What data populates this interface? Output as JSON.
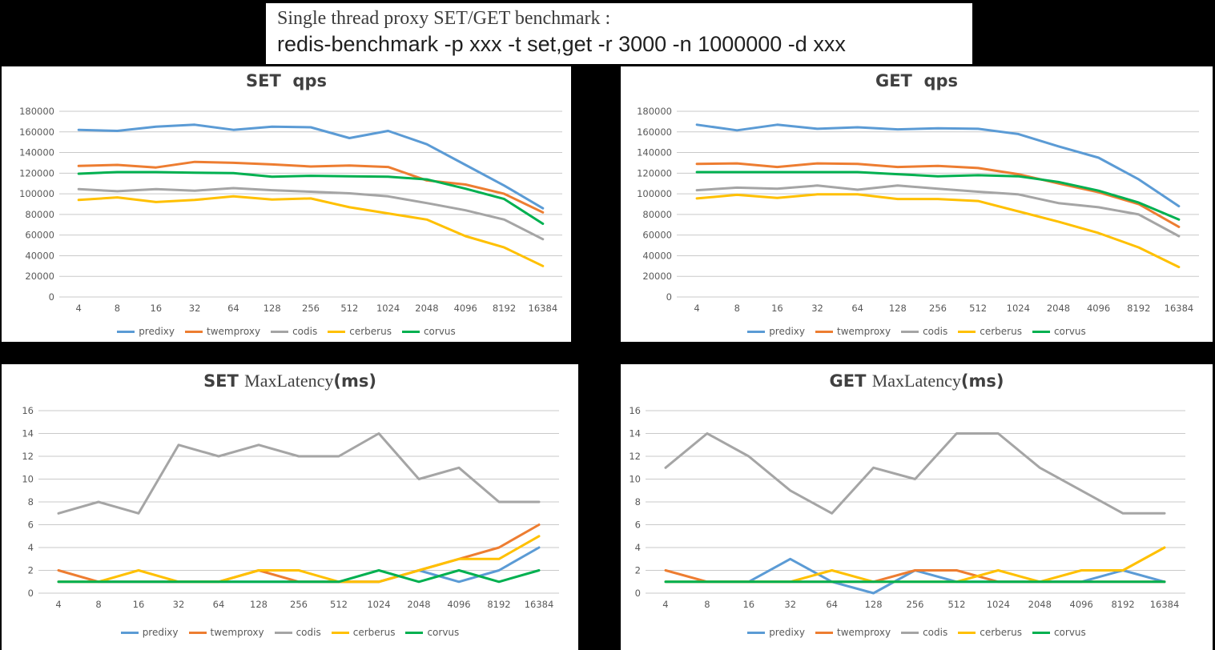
{
  "page": {
    "background": "#000000",
    "header": {
      "line1": "Single thread proxy SET/GET benchmark :",
      "line2": "redis-benchmark -p xxx -t set,get -r 3000 -n 1000000 -d xxx"
    }
  },
  "colors": {
    "predixy": "#5B9BD5",
    "twemproxy": "#ED7D31",
    "codis": "#A5A5A5",
    "cerberus": "#FFC000",
    "corvus": "#00B050",
    "grid": "#C9C9C9",
    "axis_text": "#595959",
    "title_text": "#404040",
    "panel_bg": "#FFFFFF"
  },
  "legend": [
    "predixy",
    "twemproxy",
    "codis",
    "cerberus",
    "corvus"
  ],
  "chart_data": [
    {
      "id": "set-qps",
      "type": "line",
      "title": "SET  qps",
      "title_segments": [
        {
          "text": "SET  qps",
          "font": "bold-sans"
        }
      ],
      "categories": [
        "4",
        "8",
        "16",
        "32",
        "64",
        "128",
        "256",
        "512",
        "1024",
        "2048",
        "4096",
        "8192",
        "16384"
      ],
      "xlabel": "",
      "ylabel": "",
      "ylim": [
        0,
        180000
      ],
      "ytick_step": 20000,
      "grid": true,
      "legend_position": "bottom",
      "series": [
        {
          "name": "predixy",
          "values": [
            162000,
            161000,
            165000,
            167000,
            162000,
            165000,
            164500,
            154000,
            161000,
            148000,
            128000,
            108000,
            86000
          ]
        },
        {
          "name": "twemproxy",
          "values": [
            127000,
            128000,
            125500,
            131000,
            130000,
            128500,
            126500,
            127500,
            126000,
            113000,
            109000,
            100000,
            82000
          ]
        },
        {
          "name": "codis",
          "values": [
            104500,
            102500,
            104500,
            103000,
            105500,
            103500,
            102000,
            100500,
            97500,
            91000,
            84000,
            75000,
            56000
          ]
        },
        {
          "name": "cerberus",
          "values": [
            94000,
            96500,
            92000,
            94000,
            97500,
            94500,
            95500,
            87000,
            81000,
            75000,
            59000,
            48000,
            30000
          ]
        },
        {
          "name": "corvus",
          "values": [
            119500,
            121000,
            121000,
            120500,
            120000,
            116500,
            117500,
            117000,
            116500,
            114000,
            105000,
            95000,
            71000
          ]
        }
      ]
    },
    {
      "id": "get-qps",
      "type": "line",
      "title": "GET  qps",
      "title_segments": [
        {
          "text": "GET  qps",
          "font": "bold-sans"
        }
      ],
      "categories": [
        "4",
        "8",
        "16",
        "32",
        "64",
        "128",
        "256",
        "512",
        "1024",
        "2048",
        "4096",
        "8192",
        "16384"
      ],
      "xlabel": "",
      "ylabel": "",
      "ylim": [
        0,
        180000
      ],
      "ytick_step": 20000,
      "grid": true,
      "legend_position": "bottom",
      "series": [
        {
          "name": "predixy",
          "values": [
            167000,
            161500,
            167000,
            163000,
            164500,
            162500,
            163500,
            163000,
            158000,
            146000,
            135000,
            114000,
            88000
          ]
        },
        {
          "name": "twemproxy",
          "values": [
            129000,
            129500,
            126000,
            129500,
            129000,
            126000,
            127000,
            125000,
            119000,
            110000,
            101500,
            90000,
            68000
          ]
        },
        {
          "name": "codis",
          "values": [
            103500,
            106000,
            105000,
            108000,
            104000,
            108000,
            105000,
            102000,
            99500,
            91000,
            87000,
            80000,
            59000
          ]
        },
        {
          "name": "cerberus",
          "values": [
            95500,
            99000,
            96000,
            99500,
            99500,
            95000,
            95000,
            93000,
            83000,
            73000,
            62000,
            48000,
            29000
          ]
        },
        {
          "name": "corvus",
          "values": [
            121000,
            121000,
            121000,
            121000,
            121000,
            119000,
            117000,
            118000,
            117000,
            111500,
            103000,
            91500,
            75000
          ]
        }
      ]
    },
    {
      "id": "set-latency",
      "type": "line",
      "title": "SET MaxLatency(ms)",
      "title_segments": [
        {
          "text": "SET ",
          "font": "bold-sans"
        },
        {
          "text": "MaxLatency",
          "font": "serif"
        },
        {
          "text": "(ms)",
          "font": "bold-sans"
        }
      ],
      "categories": [
        "4",
        "8",
        "16",
        "32",
        "64",
        "128",
        "256",
        "512",
        "1024",
        "2048",
        "4096",
        "8192",
        "16384"
      ],
      "xlabel": "",
      "ylabel": "",
      "ylim": [
        0,
        16
      ],
      "ytick_step": 2,
      "grid": true,
      "legend_position": "bottom",
      "series": [
        {
          "name": "predixy",
          "values": [
            1,
            1,
            1,
            1,
            1,
            1,
            1,
            1,
            1,
            2,
            1,
            2,
            4
          ]
        },
        {
          "name": "twemproxy",
          "values": [
            2,
            1,
            1,
            1,
            1,
            2,
            1,
            1,
            1,
            2,
            3,
            4,
            6
          ]
        },
        {
          "name": "codis",
          "values": [
            7,
            8,
            7,
            13,
            12,
            13,
            12,
            12,
            14,
            10,
            11,
            8,
            8
          ]
        },
        {
          "name": "cerberus",
          "values": [
            1,
            1,
            2,
            1,
            1,
            2,
            2,
            1,
            1,
            2,
            3,
            3,
            5
          ]
        },
        {
          "name": "corvus",
          "values": [
            1,
            1,
            1,
            1,
            1,
            1,
            1,
            1,
            2,
            1,
            2,
            1,
            2
          ]
        }
      ]
    },
    {
      "id": "get-latency",
      "type": "line",
      "title": "GET MaxLatency(ms)",
      "title_segments": [
        {
          "text": "GET ",
          "font": "bold-sans"
        },
        {
          "text": "MaxLatency",
          "font": "serif"
        },
        {
          "text": "(ms)",
          "font": "bold-sans"
        }
      ],
      "categories": [
        "4",
        "8",
        "16",
        "32",
        "64",
        "128",
        "256",
        "512",
        "1024",
        "2048",
        "4096",
        "8192",
        "16384"
      ],
      "xlabel": "",
      "ylabel": "",
      "ylim": [
        0,
        16
      ],
      "ytick_step": 2,
      "grid": true,
      "legend_position": "bottom",
      "series": [
        {
          "name": "predixy",
          "values": [
            1,
            1,
            1,
            3,
            1,
            0,
            2,
            1,
            1,
            1,
            1,
            2,
            1
          ]
        },
        {
          "name": "twemproxy",
          "values": [
            2,
            1,
            1,
            1,
            1,
            1,
            2,
            2,
            1,
            1,
            1,
            1,
            1
          ]
        },
        {
          "name": "codis",
          "values": [
            11,
            14,
            12,
            9,
            7,
            11,
            10,
            14,
            14,
            11,
            9,
            7,
            7
          ]
        },
        {
          "name": "cerberus",
          "values": [
            1,
            1,
            1,
            1,
            2,
            1,
            1,
            1,
            2,
            1,
            2,
            2,
            4
          ]
        },
        {
          "name": "corvus",
          "values": [
            1,
            1,
            1,
            1,
            1,
            1,
            1,
            1,
            1,
            1,
            1,
            1,
            1
          ]
        }
      ]
    }
  ]
}
